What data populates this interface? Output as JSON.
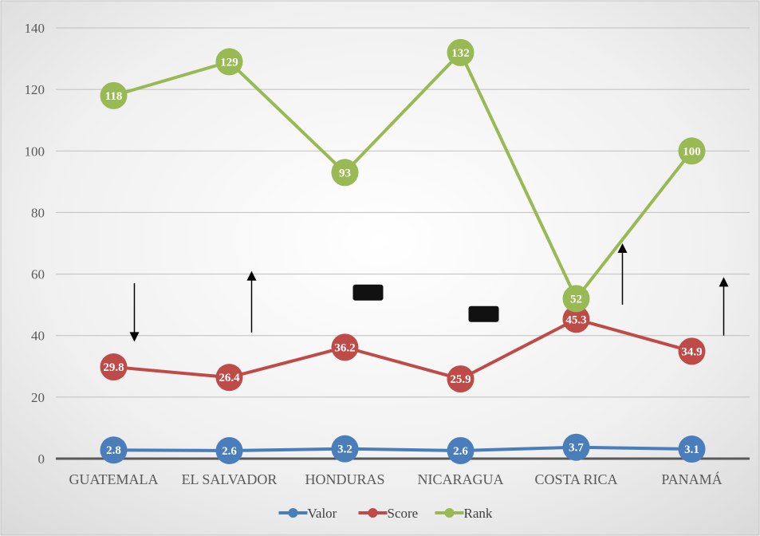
{
  "chart_data": {
    "type": "line",
    "title": "",
    "xlabel": "",
    "ylabel": "",
    "categories": [
      "GUATEMALA",
      "EL SALVADOR",
      "HONDURAS",
      "NICARAGUA",
      "COSTA RICA",
      "PANAMÁ"
    ],
    "ylim": [
      0,
      140
    ],
    "yticks": [
      0,
      20,
      40,
      60,
      80,
      100,
      120,
      140
    ],
    "grid": true,
    "legend": "bottom",
    "series": [
      {
        "name": "Valor",
        "color": "#4a7ebb",
        "values": [
          2.8,
          2.6,
          3.2,
          2.6,
          3.7,
          3.1
        ],
        "labels": [
          "2.8",
          "2.6",
          "3.2",
          "2.6",
          "3.7",
          "3.1"
        ]
      },
      {
        "name": "Score",
        "color": "#be4b48",
        "values": [
          29.8,
          26.4,
          36.2,
          25.9,
          45.3,
          34.9
        ],
        "labels": [
          "29.8",
          "26.4",
          "36.2",
          "25.9",
          "45.3",
          "34.9"
        ]
      },
      {
        "name": "Rank",
        "color": "#98b954",
        "values": [
          118,
          129,
          93,
          132,
          52,
          100
        ],
        "labels": [
          "118",
          "129",
          "93",
          "132",
          "52",
          "100"
        ]
      }
    ],
    "annotations": {
      "arrows": [
        {
          "category": "GUATEMALA",
          "direction": "down",
          "from": 57,
          "to": 38
        },
        {
          "category": "EL SALVADOR",
          "direction": "up",
          "from": 41,
          "to": 61
        },
        {
          "category": "COSTA RICA",
          "direction": "up",
          "from": 50,
          "to": 70
        },
        {
          "category": "PANAMÁ",
          "direction": "up",
          "from": 40,
          "to": 59
        }
      ],
      "markers": [
        {
          "category": "HONDURAS",
          "shape": "bar",
          "value": 54
        },
        {
          "category": "NICARAGUA",
          "shape": "bar",
          "value": 47
        }
      ]
    }
  }
}
